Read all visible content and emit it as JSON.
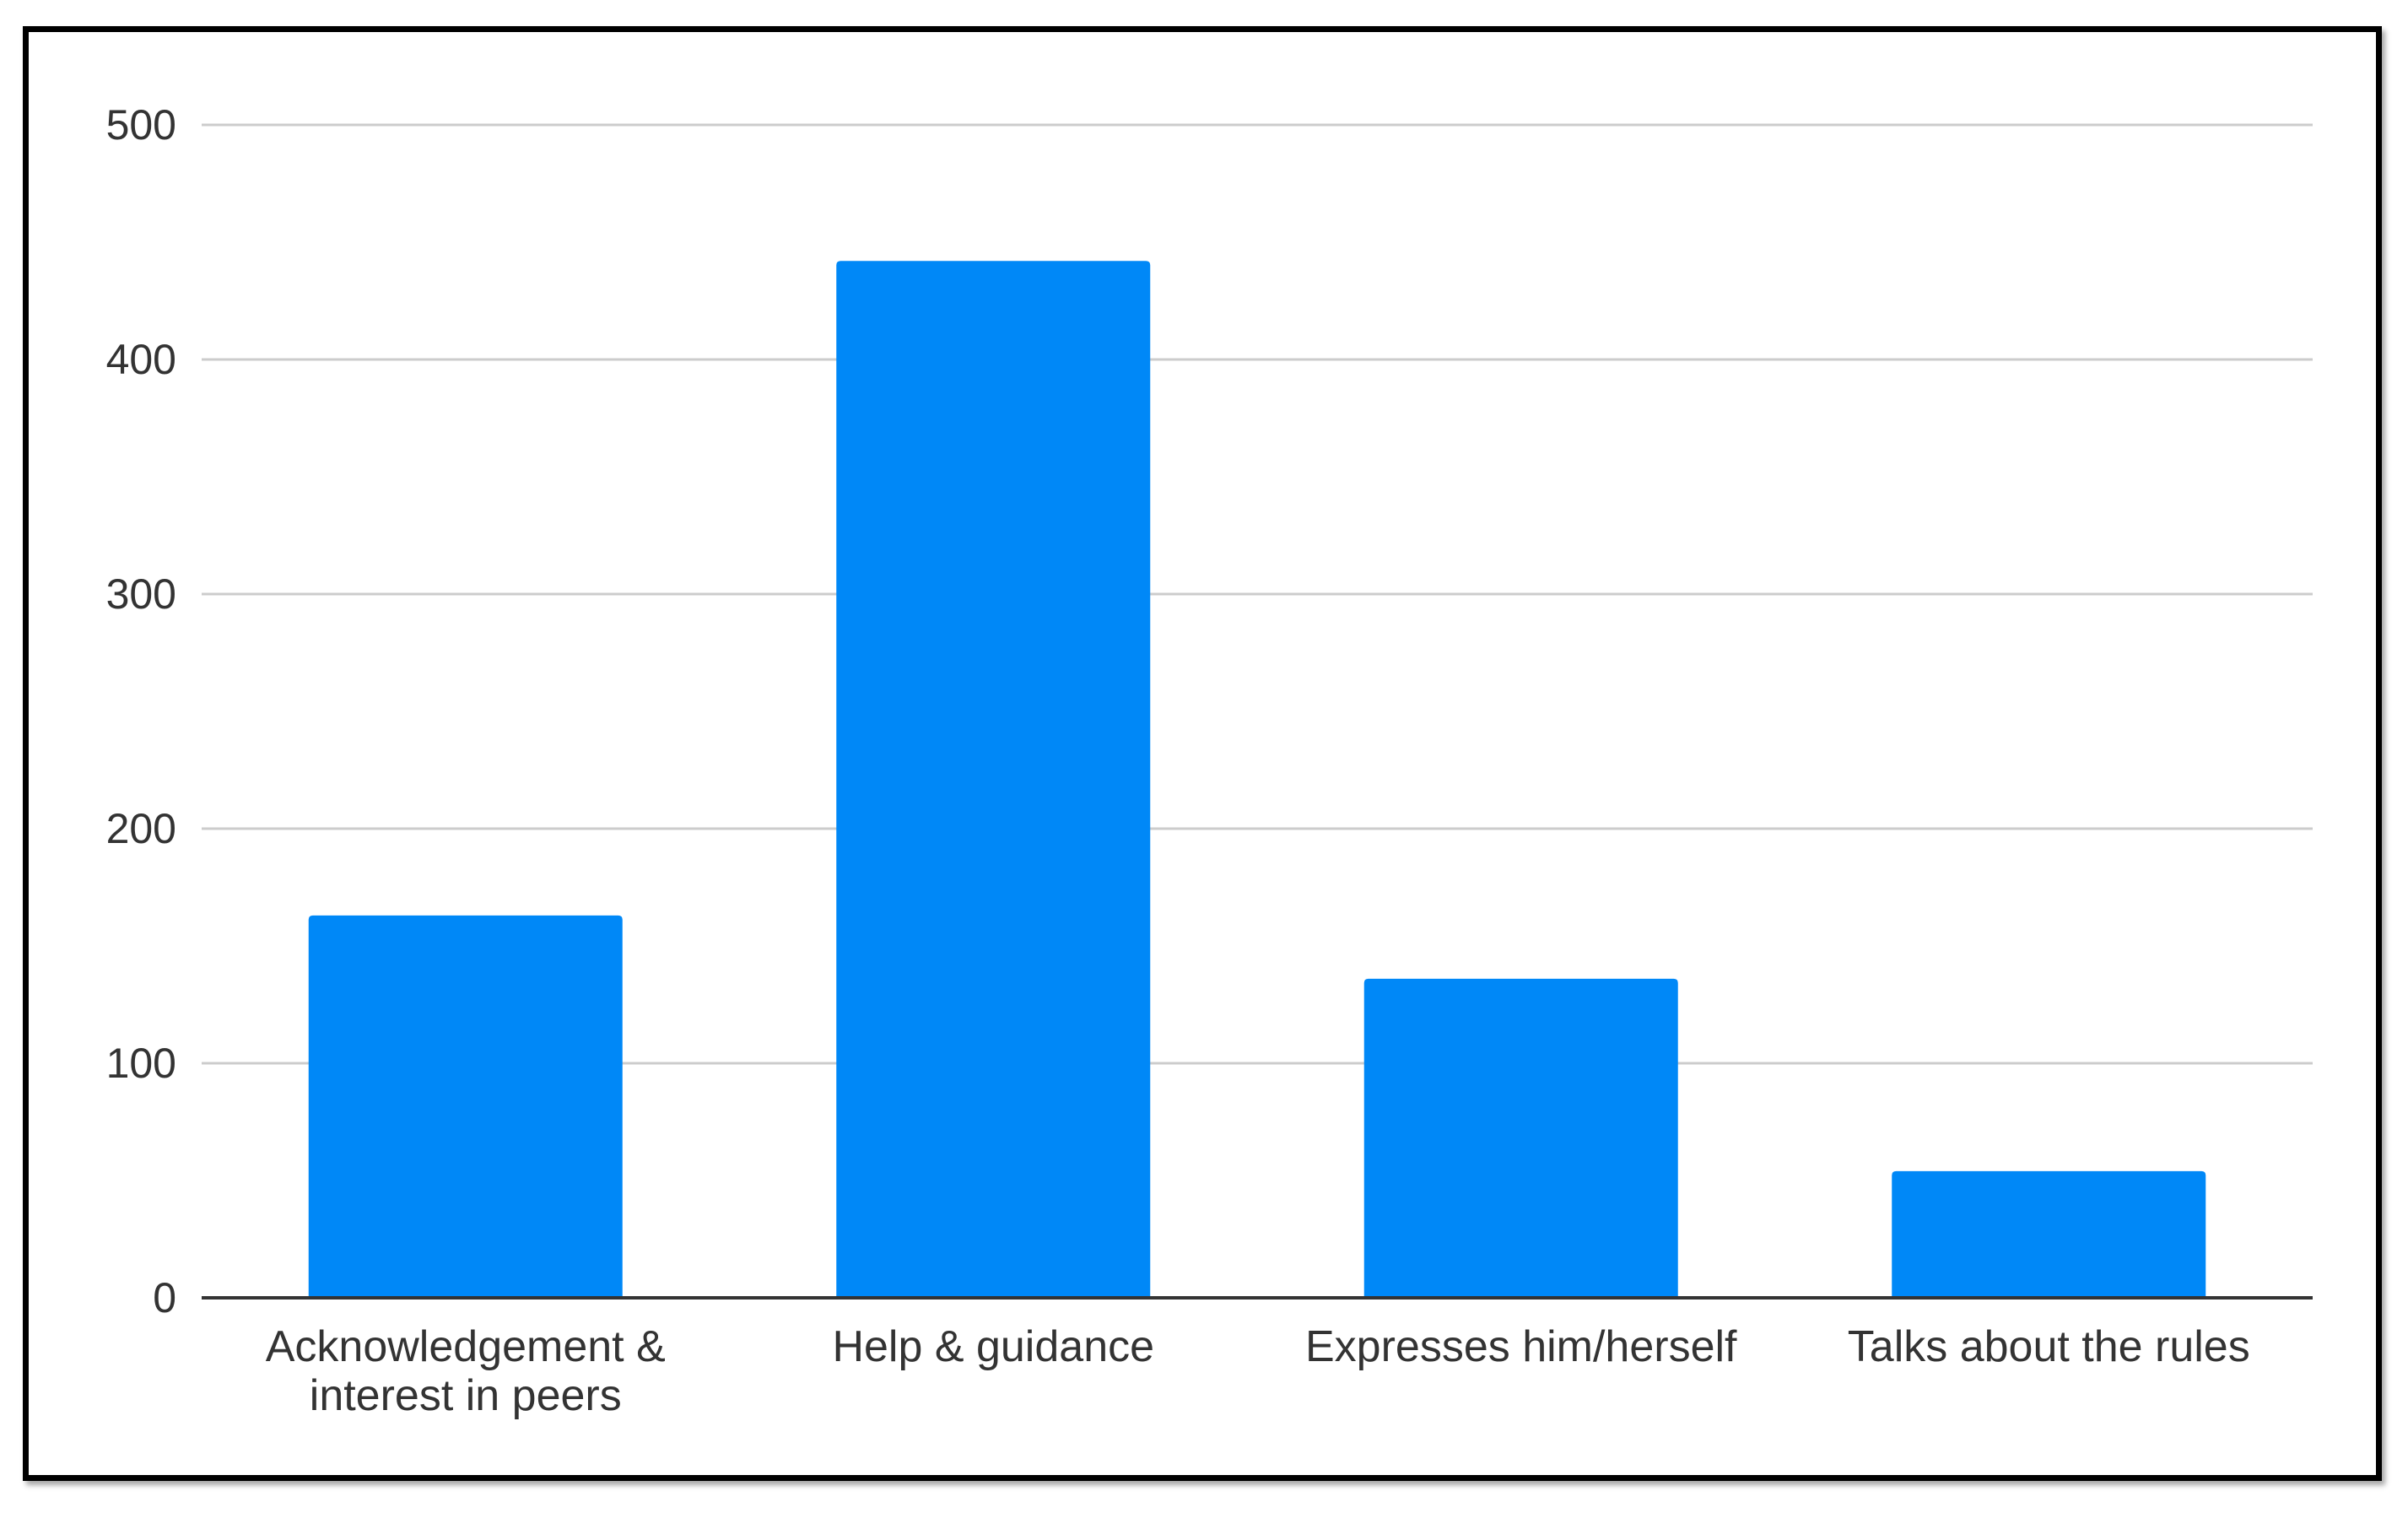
{
  "chart_data": {
    "type": "bar",
    "categories": [
      [
        "Acknowledgement &",
        "interest in peers"
      ],
      [
        "Help & guidance"
      ],
      [
        "Expresses him/herself"
      ],
      [
        "Talks about the rules"
      ]
    ],
    "values": [
      163,
      442,
      136,
      54
    ],
    "yticks": [
      "0",
      "100",
      "200",
      "300",
      "400",
      "500"
    ],
    "ylim": [
      0,
      500
    ],
    "grid": true,
    "bar_color": "#0088f7",
    "grid_color": "#cccccc",
    "axis_color": "#333333",
    "text_color": "#333333"
  }
}
